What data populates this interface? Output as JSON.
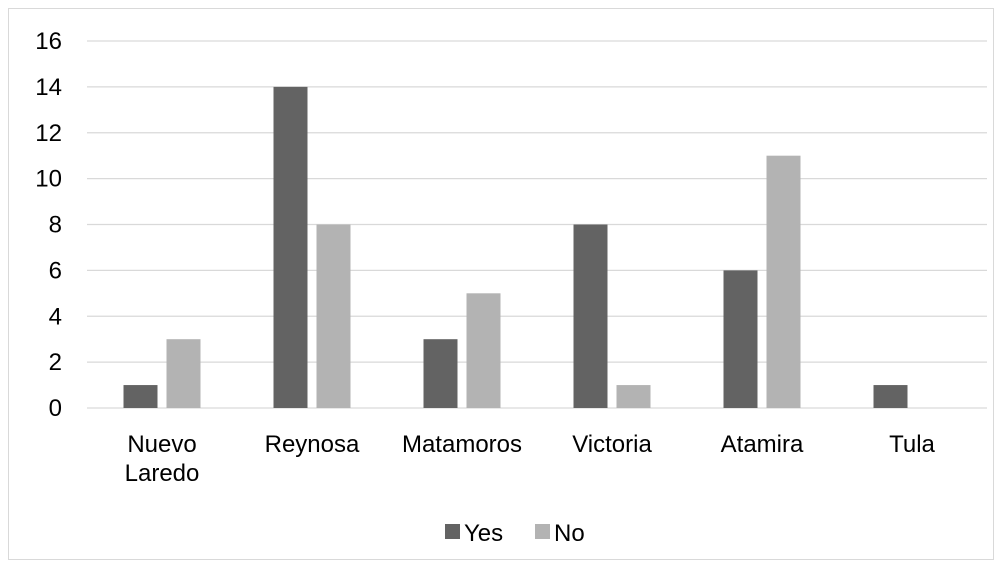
{
  "chart_data": {
    "type": "bar",
    "categories": [
      [
        "Nuevo",
        "Laredo"
      ],
      [
        "Reynosa"
      ],
      [
        "Matamoros"
      ],
      [
        "Victoria"
      ],
      [
        "Atamira"
      ],
      [
        "Tula"
      ]
    ],
    "series": [
      {
        "name": "Yes",
        "values": [
          1,
          14,
          3,
          8,
          6,
          1
        ],
        "color": "#636363"
      },
      {
        "name": "No",
        "values": [
          3,
          8,
          5,
          1,
          11,
          0
        ],
        "color": "#b3b3b3"
      }
    ],
    "ylim": [
      0,
      16
    ],
    "yticks": [
      0,
      2,
      4,
      6,
      8,
      10,
      12,
      14,
      16
    ],
    "grid": true,
    "legend_position": "bottom",
    "colors": {
      "gridline": "#d9d9d9",
      "axis": "#d9d9d9"
    }
  }
}
